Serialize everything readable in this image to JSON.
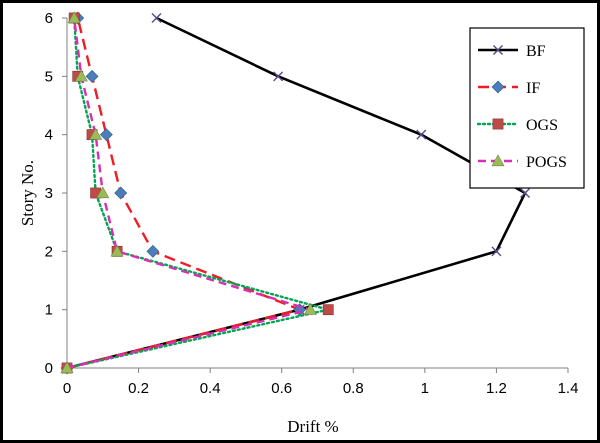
{
  "chart_data": {
    "type": "line",
    "xlabel": "Drift %",
    "ylabel": "Story No.",
    "xlim": [
      0,
      1.4
    ],
    "ylim": [
      0,
      6
    ],
    "xticks": [
      "0",
      "0.2",
      "0.4",
      "0.6",
      "0.8",
      "1",
      "1.2",
      "1.4"
    ],
    "yticks": [
      "0",
      "1",
      "2",
      "3",
      "4",
      "5",
      "6"
    ],
    "grid": false,
    "legend_position": "top-right",
    "series": [
      {
        "name": "BF",
        "color": "#000000",
        "dash": "solid",
        "marker": "x",
        "x": [
          0,
          0.65,
          1.2,
          1.28,
          0.99,
          0.59,
          0.25
        ],
        "y": [
          0,
          1,
          2,
          3,
          4,
          5,
          6
        ]
      },
      {
        "name": "IF",
        "color": "#ee1c25",
        "dash": "longdash",
        "marker": "diamond",
        "marker_color": "#4a7ebb",
        "x": [
          0,
          0.65,
          0.24,
          0.15,
          0.11,
          0.07,
          0.03
        ],
        "y": [
          0,
          1,
          2,
          3,
          4,
          5,
          6
        ]
      },
      {
        "name": "OGS",
        "color": "#00a651",
        "dash": "dotted",
        "marker": "square",
        "marker_color": "#be4b48",
        "x": [
          0,
          0.73,
          0.14,
          0.08,
          0.07,
          0.03,
          0.02
        ],
        "y": [
          0,
          1,
          2,
          3,
          4,
          5,
          6
        ]
      },
      {
        "name": "POGS",
        "color": "#d62fb4",
        "dash": "dashed",
        "marker": "triangle",
        "marker_color": "#9bbb59",
        "x": [
          0,
          0.68,
          0.14,
          0.1,
          0.08,
          0.04,
          0.02
        ],
        "y": [
          0,
          1,
          2,
          3,
          4,
          5,
          6
        ]
      }
    ]
  }
}
